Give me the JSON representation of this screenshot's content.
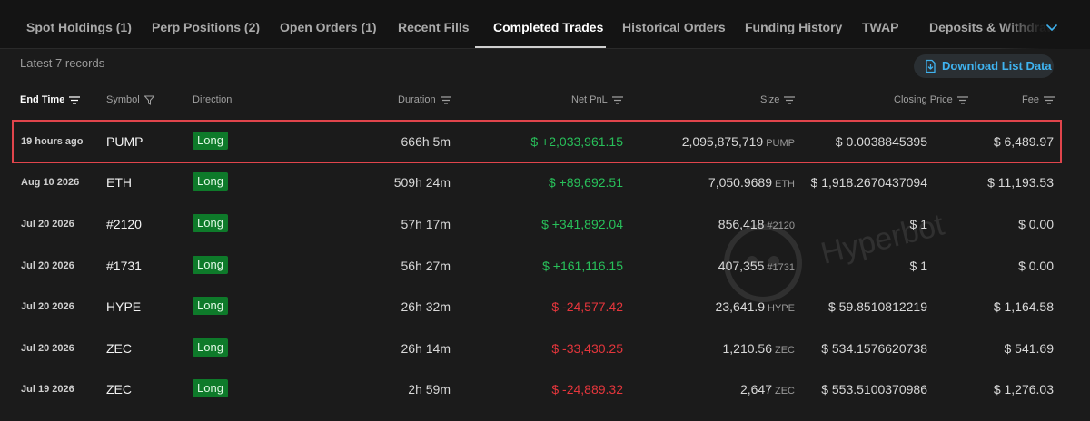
{
  "tabs": [
    {
      "label": "Spot Holdings (1)"
    },
    {
      "label": "Perp Positions (2)"
    },
    {
      "label": "Open Orders (1)"
    },
    {
      "label": "Recent Fills"
    },
    {
      "label": "Completed Trades",
      "active": true
    },
    {
      "label": "Historical Orders"
    },
    {
      "label": "Funding History"
    },
    {
      "label": "TWAP"
    },
    {
      "label": "Deposits & Withdraw"
    }
  ],
  "records_count": "Latest 7 records",
  "download_label": "Download List Data",
  "columns": {
    "end_time": "End Time",
    "symbol": "Symbol",
    "direction": "Direction",
    "duration": "Duration",
    "net_pnl": "Net PnL",
    "size": "Size",
    "closing_price": "Closing Price",
    "fee": "Fee"
  },
  "rows": [
    {
      "time": "19 hours ago",
      "symbol": "PUMP",
      "direction": "Long",
      "duration": "666h 5m",
      "pnl": "$ +2,033,961.15",
      "pnl_sign": "pos",
      "size": "2,095,875,719",
      "unit": "PUMP",
      "price": "$ 0.0038845395",
      "fee": "$ 6,489.97",
      "highlighted": true
    },
    {
      "time": "Aug 10 2026",
      "symbol": "ETH",
      "direction": "Long",
      "duration": "509h 24m",
      "pnl": "$ +89,692.51",
      "pnl_sign": "pos",
      "size": "7,050.9689",
      "unit": "ETH",
      "price": "$ 1,918.2670437094",
      "fee": "$ 11,193.53"
    },
    {
      "time": "Jul 20 2026",
      "symbol": "#2120",
      "direction": "Long",
      "duration": "57h 17m",
      "pnl": "$ +341,892.04",
      "pnl_sign": "pos",
      "size": "856,418",
      "unit": "#2120",
      "price": "$ 1",
      "fee": "$ 0.00"
    },
    {
      "time": "Jul 20 2026",
      "symbol": "#1731",
      "direction": "Long",
      "duration": "56h 27m",
      "pnl": "$ +161,116.15",
      "pnl_sign": "pos",
      "size": "407,355",
      "unit": "#1731",
      "price": "$ 1",
      "fee": "$ 0.00"
    },
    {
      "time": "Jul 20 2026",
      "symbol": "HYPE",
      "direction": "Long",
      "duration": "26h 32m",
      "pnl": "$ -24,577.42",
      "pnl_sign": "neg",
      "size": "23,641.9",
      "unit": "HYPE",
      "price": "$ 59.8510812219",
      "fee": "$ 1,164.58"
    },
    {
      "time": "Jul 20 2026",
      "symbol": "ZEC",
      "direction": "Long",
      "duration": "26h 14m",
      "pnl": "$ -33,430.25",
      "pnl_sign": "neg",
      "size": "1,210.56",
      "unit": "ZEC",
      "price": "$ 534.1576620738",
      "fee": "$ 541.69"
    },
    {
      "time": "Jul 19 2026",
      "symbol": "ZEC",
      "direction": "Long",
      "duration": "2h 59m",
      "pnl": "$ -24,889.32",
      "pnl_sign": "neg",
      "size": "2,647",
      "unit": "ZEC",
      "price": "$ 553.5100370986",
      "fee": "$ 1,276.03"
    }
  ],
  "watermark": "Hyperbot",
  "colors": {
    "positive": "#28c05a",
    "negative": "#e5363c",
    "accent": "#3fb3f0",
    "highlight": "#e0454c"
  }
}
